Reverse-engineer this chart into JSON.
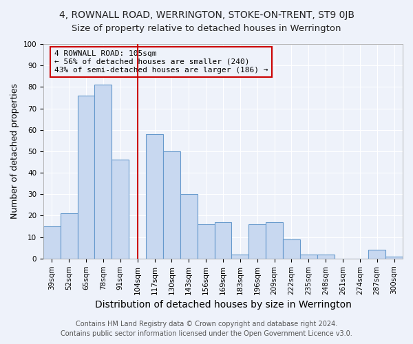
{
  "title": "4, ROWNALL ROAD, WERRINGTON, STOKE-ON-TRENT, ST9 0JB",
  "subtitle": "Size of property relative to detached houses in Werrington",
  "xlabel": "Distribution of detached houses by size in Werrington",
  "ylabel": "Number of detached properties",
  "categories": [
    "39sqm",
    "52sqm",
    "65sqm",
    "78sqm",
    "91sqm",
    "104sqm",
    "117sqm",
    "130sqm",
    "143sqm",
    "156sqm",
    "169sqm",
    "183sqm",
    "196sqm",
    "209sqm",
    "222sqm",
    "235sqm",
    "248sqm",
    "261sqm",
    "274sqm",
    "287sqm",
    "300sqm"
  ],
  "values": [
    15,
    21,
    76,
    81,
    46,
    0,
    58,
    50,
    30,
    16,
    17,
    2,
    16,
    17,
    9,
    2,
    2,
    0,
    0,
    4,
    1
  ],
  "bar_color": "#c8d8f0",
  "bar_edge_color": "#6699cc",
  "vline_index": 5,
  "vline_color": "#cc0000",
  "annotation_line1": "4 ROWNALL ROAD: 105sqm",
  "annotation_line2": "← 56% of detached houses are smaller (240)",
  "annotation_line3": "43% of semi-detached houses are larger (186) →",
  "annotation_box_color": "#cc0000",
  "ylim": [
    0,
    100
  ],
  "yticks": [
    0,
    10,
    20,
    30,
    40,
    50,
    60,
    70,
    80,
    90,
    100
  ],
  "footer_line1": "Contains HM Land Registry data © Crown copyright and database right 2024.",
  "footer_line2": "Contains public sector information licensed under the Open Government Licence v3.0.",
  "bg_color": "#eef2fa",
  "plot_bg_color": "#eef2fa",
  "title_fontsize": 10,
  "subtitle_fontsize": 9.5,
  "xlabel_fontsize": 10,
  "ylabel_fontsize": 9,
  "tick_fontsize": 7.5,
  "footer_fontsize": 7,
  "annotation_fontsize": 8
}
